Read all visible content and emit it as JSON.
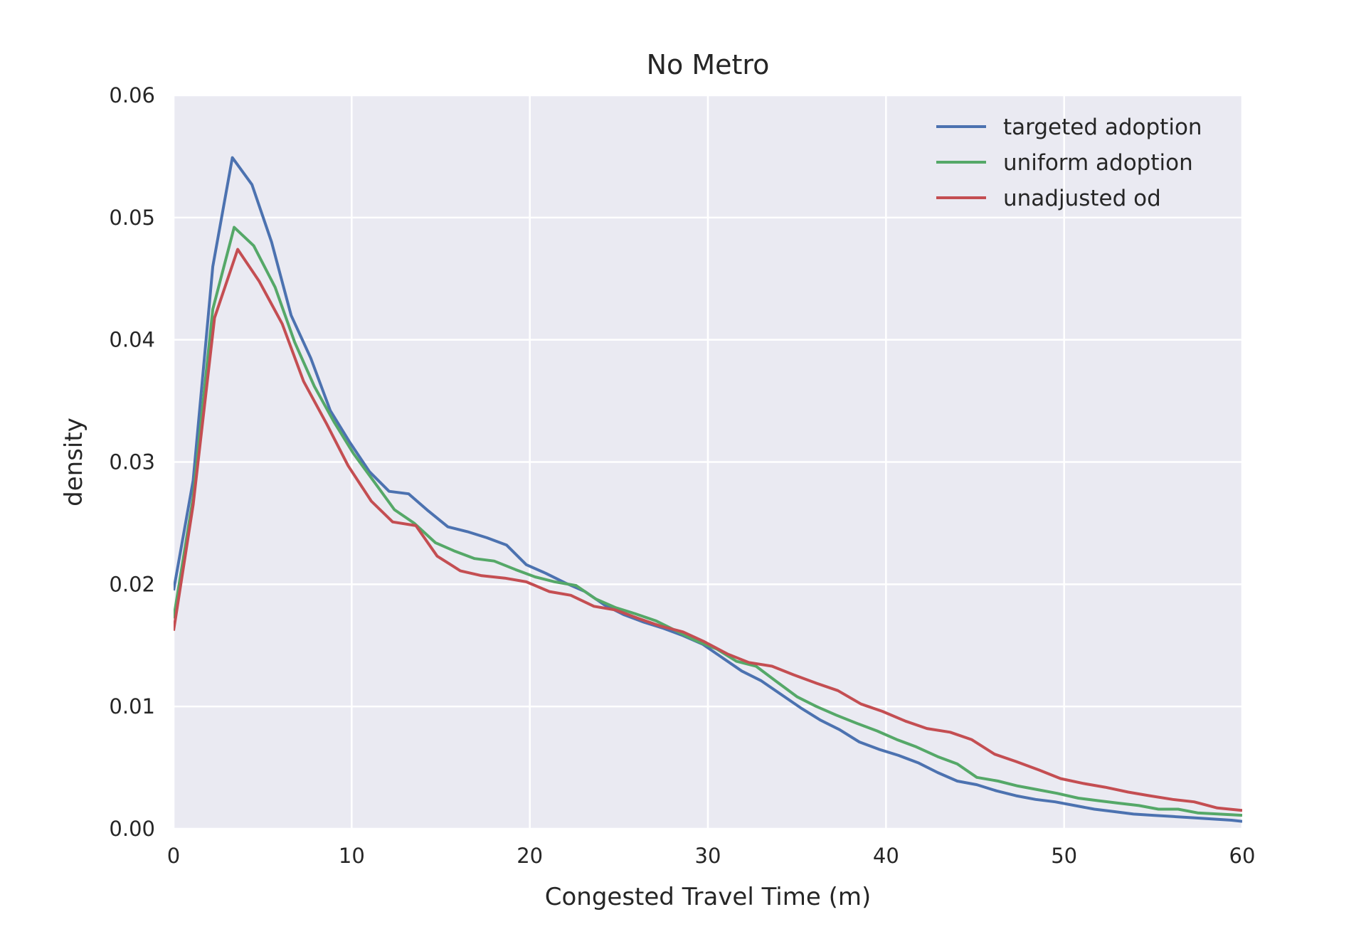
{
  "chart_data": {
    "type": "line",
    "title": "No Metro",
    "xlabel": "Congested Travel Time (m)",
    "ylabel": "density",
    "xlim": [
      0,
      60
    ],
    "ylim": [
      0,
      0.06
    ],
    "xticks": [
      "0",
      "10",
      "20",
      "30",
      "40",
      "50",
      "60"
    ],
    "yticks": [
      "0.00",
      "0.01",
      "0.02",
      "0.03",
      "0.04",
      "0.05",
      "0.06"
    ],
    "grid": true,
    "legend_position": "top-right",
    "series": [
      {
        "name": "targeted adoption",
        "color": "#4c72b0",
        "x": [
          0,
          1.1,
          2.2,
          3.3,
          4.4,
          5.5,
          6.6,
          7.7,
          8.8,
          9.9,
          11,
          12.1,
          13.2,
          14.3,
          15.4,
          16.5,
          17.6,
          18.7,
          19.8,
          20.9,
          22,
          23.1,
          24.2,
          25.3,
          26.4,
          27.5,
          28.6,
          29.7,
          30.8,
          31.9,
          33,
          34.1,
          35.2,
          36.3,
          37.4,
          38.5,
          39.6,
          40.7,
          41.8,
          42.9,
          44,
          45.1,
          46.2,
          47.3,
          48.4,
          49.5,
          50.6,
          51.7,
          52.8,
          53.9,
          55,
          56.1,
          57.2,
          58.3,
          59.4,
          60
        ],
        "y": [
          0.0195,
          0.0285,
          0.046,
          0.0549,
          0.0527,
          0.048,
          0.042,
          0.0385,
          0.0342,
          0.0316,
          0.0292,
          0.0276,
          0.0274,
          0.026,
          0.0247,
          0.0243,
          0.0238,
          0.0232,
          0.0216,
          0.0209,
          0.0201,
          0.0194,
          0.0183,
          0.0175,
          0.0169,
          0.0164,
          0.0158,
          0.0151,
          0.014,
          0.0129,
          0.0121,
          0.011,
          0.0099,
          0.0089,
          0.0081,
          0.0071,
          0.0065,
          0.006,
          0.0054,
          0.0046,
          0.0039,
          0.0036,
          0.0031,
          0.0027,
          0.0024,
          0.0022,
          0.0019,
          0.0016,
          0.0014,
          0.0012,
          0.0011,
          0.001,
          0.0009,
          0.0008,
          0.0007,
          0.0006
        ]
      },
      {
        "name": "uniform adoption",
        "color": "#55a868",
        "x": [
          0,
          1.1,
          2.2,
          3.4,
          4.5,
          5.7,
          6.8,
          7.9,
          9,
          10.1,
          11.3,
          12.4,
          13.5,
          14.7,
          15.8,
          16.9,
          18,
          19.2,
          20.3,
          21.4,
          22.6,
          23.7,
          24.8,
          25.9,
          27.1,
          28.2,
          29.3,
          30.5,
          31.6,
          32.7,
          33.8,
          35,
          36.1,
          37.2,
          38.4,
          39.5,
          40.6,
          41.7,
          42.9,
          44,
          45.1,
          46.3,
          47.4,
          48.5,
          49.6,
          50.8,
          51.9,
          53,
          54.2,
          55.3,
          56.4,
          57.5,
          58.7,
          60
        ],
        "y": [
          0.0172,
          0.0271,
          0.0425,
          0.0492,
          0.0477,
          0.0443,
          0.0398,
          0.0362,
          0.0333,
          0.0307,
          0.0283,
          0.0261,
          0.025,
          0.0234,
          0.0227,
          0.0221,
          0.0219,
          0.0212,
          0.0206,
          0.0202,
          0.0199,
          0.0188,
          0.0181,
          0.0176,
          0.017,
          0.0162,
          0.0154,
          0.0147,
          0.0137,
          0.0133,
          0.0121,
          0.0108,
          0.01,
          0.0093,
          0.0086,
          0.008,
          0.0073,
          0.0067,
          0.0059,
          0.0053,
          0.0042,
          0.0039,
          0.0035,
          0.0032,
          0.0029,
          0.0025,
          0.0023,
          0.0021,
          0.0019,
          0.0016,
          0.0016,
          0.0013,
          0.0012,
          0.0011
        ]
      },
      {
        "name": "unadjusted od",
        "color": "#c44e52",
        "x": [
          0,
          1.1,
          2.3,
          3.6,
          4.8,
          6.1,
          7.3,
          8.6,
          9.8,
          11.1,
          12.3,
          13.6,
          14.8,
          16.1,
          17.3,
          18.6,
          19.8,
          21.1,
          22.3,
          23.6,
          24.8,
          26.1,
          27.3,
          28.6,
          29.8,
          31.1,
          32.3,
          33.6,
          34.8,
          36.1,
          37.3,
          38.6,
          39.8,
          41.1,
          42.3,
          43.6,
          44.8,
          46.1,
          47.3,
          48.6,
          49.8,
          51.1,
          52.3,
          53.6,
          54.8,
          56.1,
          57.3,
          58.6,
          60
        ],
        "y": [
          0.0162,
          0.0265,
          0.0418,
          0.0474,
          0.0448,
          0.0413,
          0.0366,
          0.0331,
          0.0297,
          0.0268,
          0.0251,
          0.0248,
          0.0223,
          0.0211,
          0.0207,
          0.0205,
          0.0202,
          0.0194,
          0.0191,
          0.0182,
          0.0179,
          0.0172,
          0.0166,
          0.0161,
          0.0153,
          0.0143,
          0.0136,
          0.0133,
          0.0126,
          0.0119,
          0.0113,
          0.0102,
          0.0096,
          0.0088,
          0.0082,
          0.0079,
          0.0073,
          0.0061,
          0.0055,
          0.0048,
          0.0041,
          0.0037,
          0.0034,
          0.003,
          0.0027,
          0.0024,
          0.0022,
          0.0017,
          0.0015
        ]
      }
    ]
  }
}
